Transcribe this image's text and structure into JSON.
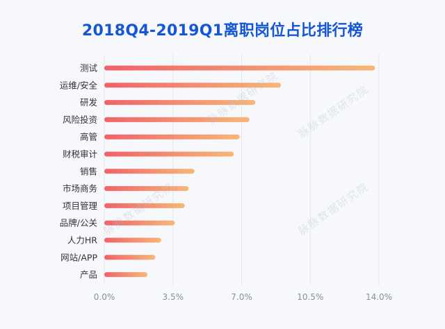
{
  "chart_data": {
    "type": "bar",
    "orientation": "horizontal",
    "title": "2018Q4-2019Q1离职岗位占比排行榜",
    "categories": [
      "测试",
      "运维/安全",
      "研发",
      "风险投资",
      "高管",
      "财税审计",
      "销售",
      "市场商务",
      "项目管理",
      "品牌/公关",
      "人力HR",
      "网站/APP",
      "产品"
    ],
    "values": [
      13.8,
      9.0,
      7.7,
      7.4,
      6.9,
      6.6,
      4.6,
      4.3,
      4.1,
      3.6,
      2.9,
      2.6,
      2.2
    ],
    "xlim": [
      0,
      14.0
    ],
    "xticks": [
      "0.0%",
      "3.5%",
      "7.0%",
      "10.5%",
      "14.0%"
    ],
    "xtick_values": [
      0,
      3.5,
      7.0,
      10.5,
      14.0
    ],
    "grid": true,
    "bar_gradient": [
      "#f0626a",
      "#f7b777"
    ],
    "title_color": "#1556d4"
  },
  "watermarks": [
    "脉脉数据研究院",
    "脉脉数据研究院",
    "脉脉数据研究院",
    "脉脉数据研究院"
  ]
}
